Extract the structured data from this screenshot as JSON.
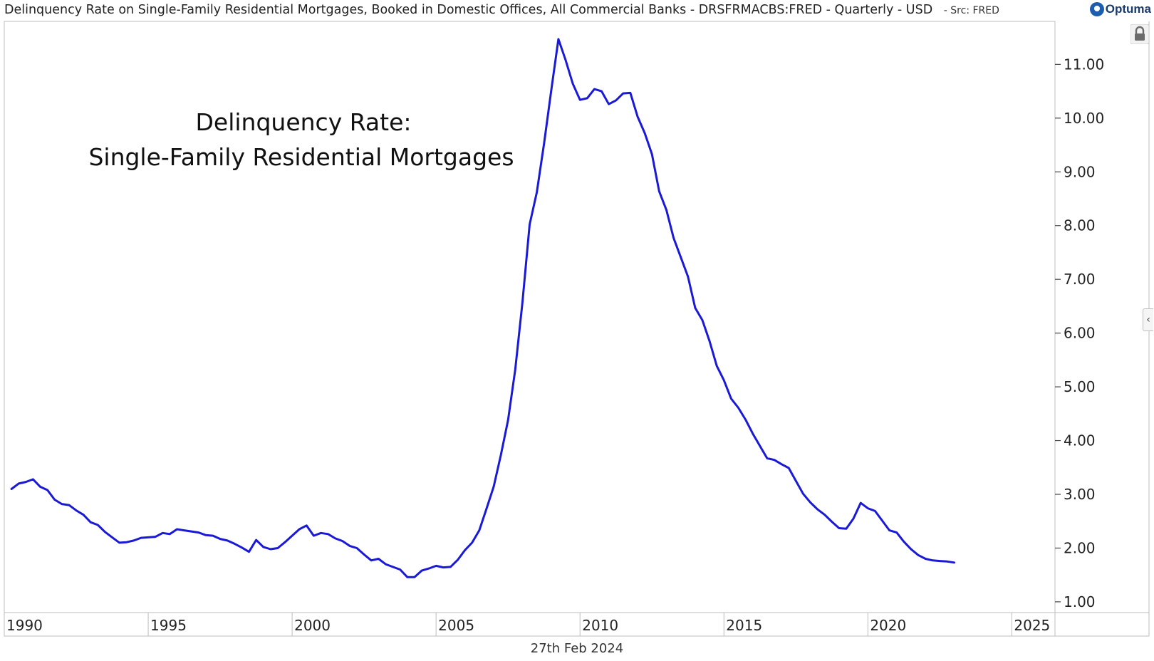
{
  "header": {
    "title": "Delinquency Rate on Single-Family Residential Mortgages, Booked in Domestic Offices, All Commercial Banks - DRSFRMACBS:FRED - Quarterly - USD",
    "source": "- Src: FRED"
  },
  "logo": {
    "text": "Optuma"
  },
  "annotation": {
    "line1": "Delinquency Rate:",
    "line2": "Single-Family Residential Mortgages"
  },
  "footer": {
    "date": "27th Feb 2024"
  },
  "icons": {
    "lock": "lock-icon",
    "side_tab": "chevron-left-icon"
  },
  "colors": {
    "series": "#1a1ad6",
    "axis": "#bdbdbd"
  },
  "chart_data": {
    "type": "line",
    "title": "",
    "xlabel": "",
    "ylabel": "",
    "xlim": [
      1990,
      2026.5
    ],
    "ylim": [
      0.8,
      11.8
    ],
    "x_ticks": [
      {
        "value": 1990,
        "label": "1990"
      },
      {
        "value": 1995,
        "label": "1995"
      },
      {
        "value": 2000,
        "label": "2000"
      },
      {
        "value": 2005,
        "label": "2005"
      },
      {
        "value": 2010,
        "label": "2010"
      },
      {
        "value": 2015,
        "label": "2015"
      },
      {
        "value": 2020,
        "label": "2020"
      },
      {
        "value": 2025,
        "label": "2025"
      }
    ],
    "y_ticks": [
      {
        "value": 1,
        "label": "1.00"
      },
      {
        "value": 2,
        "label": "2.00"
      },
      {
        "value": 3,
        "label": "3.00"
      },
      {
        "value": 4,
        "label": "4.00"
      },
      {
        "value": 5,
        "label": "5.00"
      },
      {
        "value": 6,
        "label": "6.00"
      },
      {
        "value": 7,
        "label": "7.00"
      },
      {
        "value": 8,
        "label": "8.00"
      },
      {
        "value": 9,
        "label": "9.00"
      },
      {
        "value": 10,
        "label": "10.00"
      },
      {
        "value": 11,
        "label": "11.00"
      }
    ],
    "grid": false,
    "series": [
      {
        "points": [
          [
            1990.25,
            3.1
          ],
          [
            1990.5,
            3.2
          ],
          [
            1990.75,
            3.23
          ],
          [
            1991.0,
            3.28
          ],
          [
            1991.25,
            3.14
          ],
          [
            1991.5,
            3.08
          ],
          [
            1991.75,
            2.9
          ],
          [
            1992.0,
            2.82
          ],
          [
            1992.25,
            2.8
          ],
          [
            1992.5,
            2.7
          ],
          [
            1992.75,
            2.62
          ],
          [
            1993.0,
            2.48
          ],
          [
            1993.25,
            2.43
          ],
          [
            1993.5,
            2.3
          ],
          [
            1993.75,
            2.2
          ],
          [
            1994.0,
            2.1
          ],
          [
            1994.25,
            2.11
          ],
          [
            1994.5,
            2.14
          ],
          [
            1994.75,
            2.19
          ],
          [
            1995.0,
            2.2
          ],
          [
            1995.25,
            2.21
          ],
          [
            1995.5,
            2.28
          ],
          [
            1995.75,
            2.26
          ],
          [
            1996.0,
            2.35
          ],
          [
            1996.25,
            2.33
          ],
          [
            1996.5,
            2.31
          ],
          [
            1996.75,
            2.29
          ],
          [
            1997.0,
            2.24
          ],
          [
            1997.25,
            2.23
          ],
          [
            1997.5,
            2.17
          ],
          [
            1997.75,
            2.14
          ],
          [
            1998.0,
            2.08
          ],
          [
            1998.25,
            2.01
          ],
          [
            1998.5,
            1.93
          ],
          [
            1998.75,
            2.15
          ],
          [
            1999.0,
            2.02
          ],
          [
            1999.25,
            1.98
          ],
          [
            1999.5,
            2.0
          ],
          [
            1999.75,
            2.11
          ],
          [
            2000.0,
            2.23
          ],
          [
            2000.25,
            2.35
          ],
          [
            2000.5,
            2.42
          ],
          [
            2000.75,
            2.23
          ],
          [
            2001.0,
            2.28
          ],
          [
            2001.25,
            2.26
          ],
          [
            2001.5,
            2.18
          ],
          [
            2001.75,
            2.13
          ],
          [
            2002.0,
            2.04
          ],
          [
            2002.25,
            2.0
          ],
          [
            2002.5,
            1.88
          ],
          [
            2002.75,
            1.77
          ],
          [
            2003.0,
            1.8
          ],
          [
            2003.25,
            1.7
          ],
          [
            2003.5,
            1.65
          ],
          [
            2003.75,
            1.6
          ],
          [
            2004.0,
            1.46
          ],
          [
            2004.25,
            1.46
          ],
          [
            2004.5,
            1.58
          ],
          [
            2004.75,
            1.62
          ],
          [
            2005.0,
            1.67
          ],
          [
            2005.25,
            1.64
          ],
          [
            2005.5,
            1.65
          ],
          [
            2005.75,
            1.78
          ],
          [
            2006.0,
            1.96
          ],
          [
            2006.25,
            2.1
          ],
          [
            2006.5,
            2.33
          ],
          [
            2006.75,
            2.73
          ],
          [
            2007.0,
            3.14
          ],
          [
            2007.25,
            3.73
          ],
          [
            2007.5,
            4.38
          ],
          [
            2007.75,
            5.32
          ],
          [
            2008.0,
            6.57
          ],
          [
            2008.25,
            8.02
          ],
          [
            2008.5,
            8.62
          ],
          [
            2008.75,
            9.52
          ],
          [
            2009.0,
            10.51
          ],
          [
            2009.25,
            11.47
          ],
          [
            2009.5,
            11.08
          ],
          [
            2009.75,
            10.64
          ],
          [
            2010.0,
            10.34
          ],
          [
            2010.25,
            10.37
          ],
          [
            2010.5,
            10.54
          ],
          [
            2010.75,
            10.5
          ],
          [
            2011.0,
            10.26
          ],
          [
            2011.25,
            10.33
          ],
          [
            2011.5,
            10.46
          ],
          [
            2011.75,
            10.47
          ],
          [
            2012.0,
            10.03
          ],
          [
            2012.25,
            9.72
          ],
          [
            2012.5,
            9.33
          ],
          [
            2012.75,
            8.64
          ],
          [
            2013.0,
            8.29
          ],
          [
            2013.25,
            7.77
          ],
          [
            2013.5,
            7.41
          ],
          [
            2013.75,
            7.05
          ],
          [
            2014.0,
            6.47
          ],
          [
            2014.25,
            6.24
          ],
          [
            2014.5,
            5.85
          ],
          [
            2014.75,
            5.39
          ],
          [
            2015.0,
            5.12
          ],
          [
            2015.25,
            4.78
          ],
          [
            2015.5,
            4.61
          ],
          [
            2015.75,
            4.39
          ],
          [
            2016.0,
            4.13
          ],
          [
            2016.25,
            3.9
          ],
          [
            2016.5,
            3.67
          ],
          [
            2016.75,
            3.64
          ],
          [
            2017.0,
            3.56
          ],
          [
            2017.25,
            3.49
          ],
          [
            2017.5,
            3.25
          ],
          [
            2017.75,
            3.01
          ],
          [
            2018.0,
            2.85
          ],
          [
            2018.25,
            2.72
          ],
          [
            2018.5,
            2.62
          ],
          [
            2018.75,
            2.49
          ],
          [
            2019.0,
            2.37
          ],
          [
            2019.25,
            2.36
          ],
          [
            2019.5,
            2.55
          ],
          [
            2019.75,
            2.84
          ],
          [
            2020.0,
            2.74
          ],
          [
            2020.25,
            2.69
          ],
          [
            2020.5,
            2.51
          ],
          [
            2020.75,
            2.33
          ],
          [
            2021.0,
            2.29
          ],
          [
            2021.25,
            2.12
          ],
          [
            2021.5,
            1.98
          ],
          [
            2021.75,
            1.87
          ],
          [
            2022.0,
            1.8
          ],
          [
            2022.25,
            1.77
          ],
          [
            2022.5,
            1.76
          ],
          [
            2022.75,
            1.75
          ],
          [
            2023.0,
            1.73
          ]
        ]
      }
    ]
  }
}
